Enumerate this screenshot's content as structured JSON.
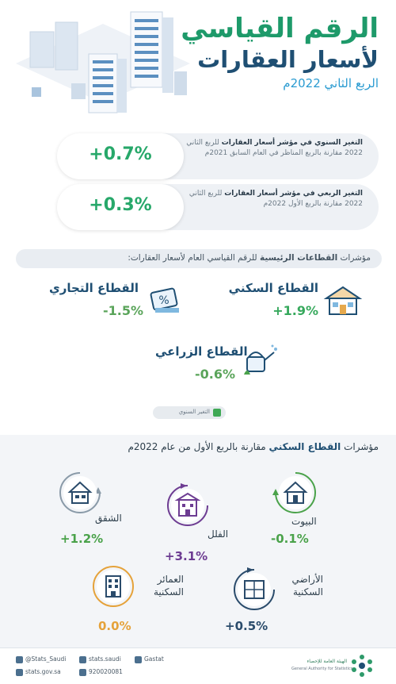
{
  "header": {
    "title_line1": "الرقم القياسي",
    "title_line2": "لأسعار العقارات",
    "subtitle": "الربع الثاني 2022م"
  },
  "annual_change": {
    "value": "+0.7%",
    "label_bold": "التغير السنوي في مؤشر أسعار العقارات",
    "label_rest": "للربع الثاني 2022 مقارنة بالربع المناظر في العام السابق 2021م"
  },
  "quarterly_change": {
    "value": "+0.3%",
    "label_bold": "التغير الربعي في مؤشر أسعار العقارات",
    "label_rest": "للربع الثاني 2022 مقارنة بالربع الأول 2022م"
  },
  "sectors_header": {
    "prefix": "مؤشرات",
    "bold": "القطاعات الرئيسية",
    "suffix": "للرقم القياسي العام لأسعار العقارات:"
  },
  "sectors": {
    "residential": {
      "name": "القطاع السكني",
      "value": "+1.9%",
      "icon": "house-icon"
    },
    "commercial": {
      "name": "القطاع التجاري",
      "value": "-1.5%",
      "icon": "percent-tag-icon"
    },
    "agricultural": {
      "name": "القطاع الزراعي",
      "value": "-0.6%",
      "icon": "watering-can-icon"
    }
  },
  "legend": {
    "label": "التغير السنوي",
    "color": "#3fa955"
  },
  "residential_header": {
    "prefix": "مؤشرات",
    "bold": "القطاع السكني",
    "suffix": "مقارنة بالربع الأول من عام 2022م"
  },
  "residential_items": {
    "apartments": {
      "name": "الشقق",
      "value": "+1.2%",
      "icon": "apartment-icon",
      "color": "#4aa24a"
    },
    "villas": {
      "name": "الفلل",
      "value": "+3.1%",
      "icon": "villa-icon",
      "color": "#6d3c92"
    },
    "houses": {
      "name": "البيوت",
      "value": "-0.1%",
      "icon": "home-icon",
      "color": "#4aa24a"
    },
    "buildings": {
      "name": "العمائر السكنية",
      "value": "0.0%",
      "icon": "building-icon",
      "color": "#e5a23a"
    },
    "lands": {
      "name": "الأراضي السكنية",
      "value": "+0.5%",
      "icon": "land-plot-icon",
      "color": "#2a4b6b"
    }
  },
  "footer": {
    "twitter": "@Stats_Saudi",
    "instagram": "stats.saudi",
    "linkedin": "Gastat",
    "website": "stats.gov.sa",
    "phone": "920020081",
    "logo_text": "الهيئة العامة للإحصاء",
    "logo_text_en": "General Authority for Statistics"
  }
}
